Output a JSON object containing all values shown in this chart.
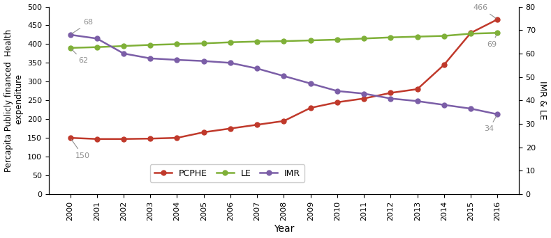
{
  "years": [
    2000,
    2001,
    2002,
    2003,
    2004,
    2005,
    2006,
    2007,
    2008,
    2009,
    2010,
    2011,
    2012,
    2013,
    2014,
    2015,
    2016
  ],
  "PCPHE": [
    150,
    147,
    147,
    148,
    150,
    165,
    175,
    185,
    195,
    230,
    245,
    255,
    270,
    280,
    345,
    430,
    466
  ],
  "LE_left": [
    390,
    392,
    395,
    398,
    400,
    402,
    405,
    407,
    408,
    410,
    412,
    415,
    418,
    420,
    422,
    428,
    430
  ],
  "IMR_left": [
    425,
    415,
    375,
    362,
    358,
    355,
    350,
    335,
    315,
    295,
    275,
    268,
    255,
    248,
    238,
    228,
    213
  ],
  "PCPHE_color": "#c0392b",
  "LE_color": "#7fb038",
  "IMR_color": "#7b5ea7",
  "annotation_color": "#909090",
  "marker": "o",
  "linewidth": 1.8,
  "markersize": 5,
  "left_ylabel": "Percapita Publicly financed  Health\n expenditure",
  "right_ylabel": "IMR & LE",
  "xlabel": "Year",
  "left_ylim": [
    0,
    500
  ],
  "right_ylim": [
    0,
    80
  ],
  "left_yticks": [
    0,
    50,
    100,
    150,
    200,
    250,
    300,
    350,
    400,
    450,
    500
  ],
  "right_yticks": [
    0,
    10,
    20,
    30,
    40,
    50,
    60,
    70,
    80
  ],
  "legend_labels": [
    "PCPHE",
    "LE",
    "IMR"
  ],
  "figsize": [
    7.89,
    3.42
  ],
  "dpi": 100
}
